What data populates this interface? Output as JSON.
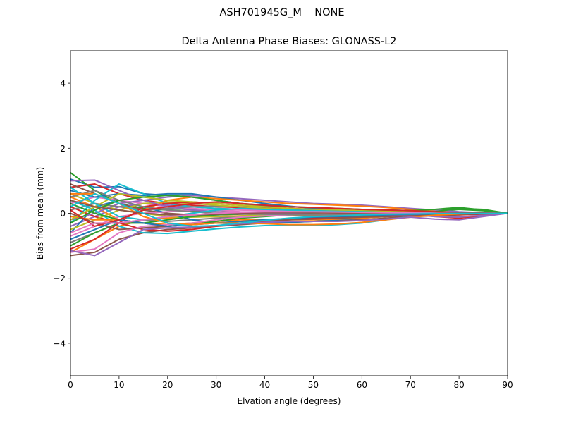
{
  "figure": {
    "suptitle": "ASH701945G_M    NONE"
  },
  "chart_data": {
    "type": "line",
    "title": "Delta Antenna Phase Biases: GLONASS-L2",
    "xlabel": "Elvation angle (degrees)",
    "ylabel": "Bias from mean (mm)",
    "xlim": [
      0,
      90
    ],
    "ylim": [
      -5,
      5
    ],
    "xticks": [
      0,
      10,
      20,
      30,
      40,
      50,
      60,
      70,
      80,
      90
    ],
    "xtick_labels": [
      "0",
      "10",
      "20",
      "30",
      "40",
      "50",
      "60",
      "70",
      "80",
      "90"
    ],
    "yticks": [
      -4,
      -2,
      0,
      2,
      4
    ],
    "ytick_labels": [
      "−4",
      "−2",
      "0",
      "2",
      "4"
    ],
    "grid": false,
    "x": [
      0,
      5,
      10,
      15,
      20,
      25,
      30,
      35,
      40,
      45,
      50,
      55,
      60,
      65,
      70,
      75,
      80,
      85,
      90
    ],
    "series": [
      {
        "color": "#1f77b4",
        "values": [
          1.05,
          0.8,
          0.82,
          0.6,
          0.55,
          0.5,
          0.4,
          0.3,
          0.22,
          0.15,
          0.1,
          0.08,
          0.06,
          0.05,
          0.03,
          0.02,
          0.02,
          0.01,
          0.0
        ]
      },
      {
        "color": "#ff7f0e",
        "values": [
          -1.2,
          -0.8,
          -0.4,
          -0.2,
          -0.15,
          -0.1,
          -0.1,
          -0.08,
          -0.05,
          -0.05,
          -0.08,
          -0.1,
          -0.08,
          -0.05,
          -0.03,
          -0.02,
          -0.01,
          0.0,
          0.0
        ]
      },
      {
        "color": "#2ca02c",
        "values": [
          1.25,
          0.7,
          0.3,
          0.15,
          0.1,
          0.08,
          0.05,
          0.03,
          0.02,
          0.0,
          -0.02,
          -0.03,
          -0.03,
          -0.02,
          -0.01,
          0.05,
          0.12,
          0.08,
          0.0
        ]
      },
      {
        "color": "#d62728",
        "values": [
          0.8,
          0.9,
          0.6,
          0.4,
          0.3,
          0.25,
          0.2,
          0.18,
          0.15,
          0.12,
          0.1,
          0.08,
          0.05,
          0.02,
          0.0,
          -0.1,
          -0.15,
          -0.08,
          0.0
        ]
      },
      {
        "color": "#9467bd",
        "values": [
          -0.4,
          -0.1,
          0.2,
          0.3,
          0.25,
          0.2,
          0.15,
          0.12,
          0.1,
          0.08,
          0.06,
          0.05,
          0.04,
          0.03,
          0.02,
          0.01,
          0.0,
          0.0,
          0.0
        ]
      },
      {
        "color": "#8c564b",
        "values": [
          -1.3,
          -1.2,
          -0.8,
          -0.6,
          -0.5,
          -0.45,
          -0.4,
          -0.35,
          -0.3,
          -0.28,
          -0.25,
          -0.22,
          -0.2,
          -0.15,
          -0.1,
          -0.08,
          -0.05,
          -0.02,
          0.0
        ]
      },
      {
        "color": "#e377c2",
        "values": [
          0.3,
          0.5,
          0.4,
          0.3,
          0.2,
          0.15,
          0.1,
          0.05,
          0.03,
          0.0,
          -0.02,
          -0.03,
          -0.03,
          -0.02,
          -0.02,
          -0.01,
          0.0,
          0.0,
          0.0
        ]
      },
      {
        "color": "#7f7f7f",
        "values": [
          -0.9,
          -0.6,
          -0.3,
          -0.2,
          -0.25,
          -0.2,
          -0.15,
          -0.1,
          -0.08,
          -0.05,
          -0.05,
          -0.04,
          -0.03,
          -0.02,
          -0.01,
          -0.01,
          0.0,
          0.0,
          0.0
        ]
      },
      {
        "color": "#bcbd22",
        "values": [
          0.6,
          0.3,
          0.1,
          0.0,
          -0.1,
          -0.12,
          -0.1,
          -0.08,
          -0.05,
          -0.03,
          -0.02,
          -0.01,
          0.0,
          0.02,
          0.02,
          0.01,
          0.01,
          0.0,
          0.0
        ]
      },
      {
        "color": "#17becf",
        "values": [
          -0.3,
          0.4,
          0.9,
          0.6,
          0.3,
          0.2,
          0.15,
          0.12,
          0.1,
          0.08,
          0.05,
          0.03,
          0.02,
          0.01,
          0.0,
          0.0,
          0.0,
          0.0,
          0.0
        ]
      },
      {
        "color": "#1f77b4",
        "values": [
          -0.6,
          0.2,
          0.4,
          0.2,
          0.0,
          -0.2,
          -0.3,
          -0.32,
          -0.3,
          -0.28,
          -0.25,
          -0.2,
          -0.15,
          -0.1,
          -0.05,
          -0.02,
          0.0,
          0.0,
          0.0
        ]
      },
      {
        "color": "#ff7f0e",
        "values": [
          0.5,
          0.2,
          -0.2,
          -0.3,
          -0.35,
          -0.3,
          -0.25,
          -0.2,
          -0.2,
          -0.2,
          -0.2,
          -0.18,
          -0.15,
          -0.1,
          -0.05,
          -0.02,
          0.0,
          0.0,
          0.0
        ]
      },
      {
        "color": "#2ca02c",
        "values": [
          -1.0,
          -0.6,
          -0.3,
          -0.3,
          -0.4,
          -0.35,
          -0.25,
          -0.15,
          -0.1,
          -0.05,
          0.0,
          0.05,
          0.1,
          0.1,
          0.08,
          0.1,
          0.15,
          0.12,
          0.0
        ]
      },
      {
        "color": "#d62728",
        "values": [
          0.2,
          -0.1,
          -0.3,
          -0.5,
          -0.55,
          -0.5,
          -0.4,
          -0.3,
          -0.25,
          -0.2,
          -0.15,
          -0.12,
          -0.1,
          -0.08,
          -0.06,
          -0.04,
          -0.02,
          0.0,
          0.0
        ]
      },
      {
        "color": "#9467bd",
        "values": [
          -0.2,
          0.0,
          0.3,
          0.4,
          0.5,
          0.55,
          0.5,
          0.45,
          0.4,
          0.35,
          0.3,
          0.28,
          0.25,
          0.2,
          0.15,
          0.1,
          0.05,
          0.02,
          0.0
        ]
      },
      {
        "color": "#8c564b",
        "values": [
          0.9,
          0.6,
          0.3,
          0.1,
          0.0,
          -0.05,
          -0.05,
          -0.03,
          -0.02,
          -0.02,
          -0.03,
          -0.04,
          -0.04,
          -0.03,
          -0.02,
          -0.01,
          0.0,
          0.0,
          0.0
        ]
      },
      {
        "color": "#e377c2",
        "values": [
          -0.7,
          -0.4,
          -0.1,
          0.0,
          0.05,
          0.1,
          0.12,
          0.1,
          0.08,
          0.06,
          0.05,
          0.04,
          0.03,
          0.02,
          0.01,
          0.0,
          0.0,
          0.0,
          0.0
        ]
      },
      {
        "color": "#7f7f7f",
        "values": [
          0.1,
          0.3,
          0.2,
          0.1,
          0.15,
          0.2,
          0.22,
          0.2,
          0.18,
          0.15,
          0.12,
          0.1,
          0.08,
          0.05,
          0.02,
          0.0,
          -0.02,
          -0.01,
          0.0
        ]
      },
      {
        "color": "#bcbd22",
        "values": [
          -0.5,
          -0.2,
          0.1,
          0.3,
          0.35,
          0.3,
          0.25,
          0.2,
          0.15,
          0.1,
          0.05,
          0.02,
          0.0,
          -0.02,
          -0.03,
          -0.02,
          -0.01,
          0.0,
          0.0
        ]
      },
      {
        "color": "#17becf",
        "values": [
          0.4,
          0.1,
          -0.4,
          -0.6,
          -0.62,
          -0.55,
          -0.48,
          -0.42,
          -0.38,
          -0.38,
          -0.38,
          -0.35,
          -0.3,
          -0.2,
          -0.1,
          -0.05,
          0.0,
          0.0,
          0.0
        ]
      },
      {
        "color": "#1f77b4",
        "values": [
          0.7,
          0.5,
          0.6,
          0.55,
          0.6,
          0.6,
          0.5,
          0.4,
          0.3,
          0.22,
          0.15,
          0.1,
          0.08,
          0.05,
          0.03,
          0.02,
          0.01,
          0.0,
          0.0
        ]
      },
      {
        "color": "#ff7f0e",
        "values": [
          -0.1,
          -0.2,
          -0.2,
          0.1,
          0.4,
          0.5,
          0.45,
          0.4,
          0.35,
          0.3,
          0.28,
          0.25,
          0.22,
          0.18,
          0.12,
          0.06,
          0.02,
          0.01,
          0.0
        ]
      },
      {
        "color": "#2ca02c",
        "values": [
          0.3,
          0.0,
          -0.2,
          -0.3,
          -0.2,
          -0.1,
          -0.05,
          -0.02,
          0.0,
          0.02,
          0.03,
          0.03,
          0.02,
          0.01,
          0.0,
          0.05,
          0.15,
          0.1,
          0.0
        ]
      },
      {
        "color": "#d62728",
        "values": [
          -1.1,
          -0.8,
          -0.3,
          0.2,
          0.3,
          0.35,
          0.3,
          0.25,
          0.2,
          0.15,
          0.12,
          0.1,
          0.08,
          0.05,
          0.03,
          0.0,
          -0.05,
          -0.03,
          0.0
        ]
      },
      {
        "color": "#9467bd",
        "values": [
          1.0,
          1.02,
          0.7,
          0.4,
          0.2,
          0.1,
          0.05,
          0.02,
          0.0,
          -0.02,
          -0.03,
          -0.04,
          -0.05,
          -0.05,
          -0.05,
          -0.1,
          -0.12,
          -0.06,
          0.0
        ]
      },
      {
        "color": "#8c564b",
        "values": [
          0.0,
          -0.3,
          -0.5,
          -0.45,
          -0.4,
          -0.35,
          -0.3,
          -0.25,
          -0.22,
          -0.2,
          -0.18,
          -0.15,
          -0.12,
          -0.1,
          -0.08,
          -0.06,
          -0.04,
          -0.02,
          0.0
        ]
      },
      {
        "color": "#e377c2",
        "values": [
          -1.2,
          -1.1,
          -0.6,
          -0.4,
          -0.35,
          -0.3,
          -0.2,
          -0.12,
          -0.08,
          -0.05,
          -0.03,
          -0.02,
          -0.01,
          0.0,
          0.0,
          0.0,
          0.0,
          0.0,
          0.0
        ]
      },
      {
        "color": "#7f7f7f",
        "values": [
          0.5,
          0.7,
          0.4,
          0.2,
          0.1,
          0.05,
          0.0,
          -0.02,
          -0.03,
          -0.04,
          -0.05,
          -0.05,
          -0.04,
          -0.03,
          -0.02,
          -0.01,
          0.0,
          0.0,
          0.0
        ]
      },
      {
        "color": "#bcbd22",
        "values": [
          -0.2,
          0.2,
          0.6,
          0.5,
          0.4,
          0.35,
          0.3,
          0.25,
          0.2,
          0.15,
          0.12,
          0.1,
          0.08,
          0.06,
          0.04,
          0.02,
          0.01,
          0.0,
          0.0
        ]
      },
      {
        "color": "#17becf",
        "values": [
          0.8,
          0.3,
          -0.1,
          -0.2,
          -0.1,
          0.0,
          0.1,
          0.15,
          0.12,
          0.1,
          0.08,
          0.06,
          0.05,
          0.03,
          0.02,
          0.01,
          0.0,
          0.0,
          0.0
        ]
      },
      {
        "color": "#1f77b4",
        "values": [
          -0.8,
          -0.5,
          -0.2,
          -0.3,
          -0.4,
          -0.35,
          -0.3,
          -0.25,
          -0.2,
          -0.16,
          -0.12,
          -0.1,
          -0.08,
          -0.05,
          -0.03,
          -0.02,
          -0.01,
          0.0,
          0.0
        ]
      },
      {
        "color": "#ff7f0e",
        "values": [
          0.6,
          0.6,
          0.3,
          -0.1,
          -0.3,
          -0.35,
          -0.3,
          -0.3,
          -0.32,
          -0.35,
          -0.35,
          -0.33,
          -0.28,
          -0.2,
          -0.12,
          -0.06,
          -0.02,
          0.0,
          0.0
        ]
      },
      {
        "color": "#2ca02c",
        "values": [
          -0.3,
          0.1,
          0.4,
          0.5,
          0.55,
          0.5,
          0.4,
          0.3,
          0.25,
          0.2,
          0.18,
          0.15,
          0.12,
          0.1,
          0.08,
          0.12,
          0.18,
          0.1,
          0.0
        ]
      },
      {
        "color": "#d62728",
        "values": [
          0.1,
          -0.4,
          -0.2,
          0.1,
          0.2,
          0.3,
          0.35,
          0.3,
          0.25,
          0.2,
          0.18,
          0.15,
          0.12,
          0.1,
          0.08,
          0.05,
          0.02,
          0.01,
          0.0
        ]
      },
      {
        "color": "#9467bd",
        "values": [
          -1.15,
          -1.3,
          -0.9,
          -0.5,
          -0.45,
          -0.42,
          -0.38,
          -0.32,
          -0.28,
          -0.25,
          -0.25,
          -0.25,
          -0.22,
          -0.18,
          -0.12,
          -0.18,
          -0.2,
          -0.1,
          0.0
        ]
      },
      {
        "color": "#8c564b",
        "values": [
          0.4,
          0.2,
          0.1,
          0.0,
          -0.05,
          -0.05,
          -0.03,
          0.0,
          0.02,
          0.02,
          0.02,
          0.01,
          0.0,
          -0.01,
          -0.01,
          0.0,
          0.0,
          0.0,
          0.0
        ]
      },
      {
        "color": "#e377c2",
        "values": [
          -0.6,
          -0.3,
          -0.3,
          -0.2,
          -0.1,
          -0.05,
          0.0,
          0.03,
          0.05,
          0.05,
          0.05,
          0.04,
          0.03,
          0.02,
          0.01,
          0.0,
          0.0,
          0.0,
          0.0
        ]
      },
      {
        "color": "#17becf",
        "values": [
          0.2,
          0.6,
          0.3,
          0.0,
          -0.3,
          -0.4,
          -0.38,
          -0.3,
          -0.22,
          -0.15,
          -0.1,
          -0.08,
          -0.05,
          -0.03,
          -0.02,
          -0.01,
          0.0,
          0.0,
          0.0
        ]
      }
    ]
  }
}
